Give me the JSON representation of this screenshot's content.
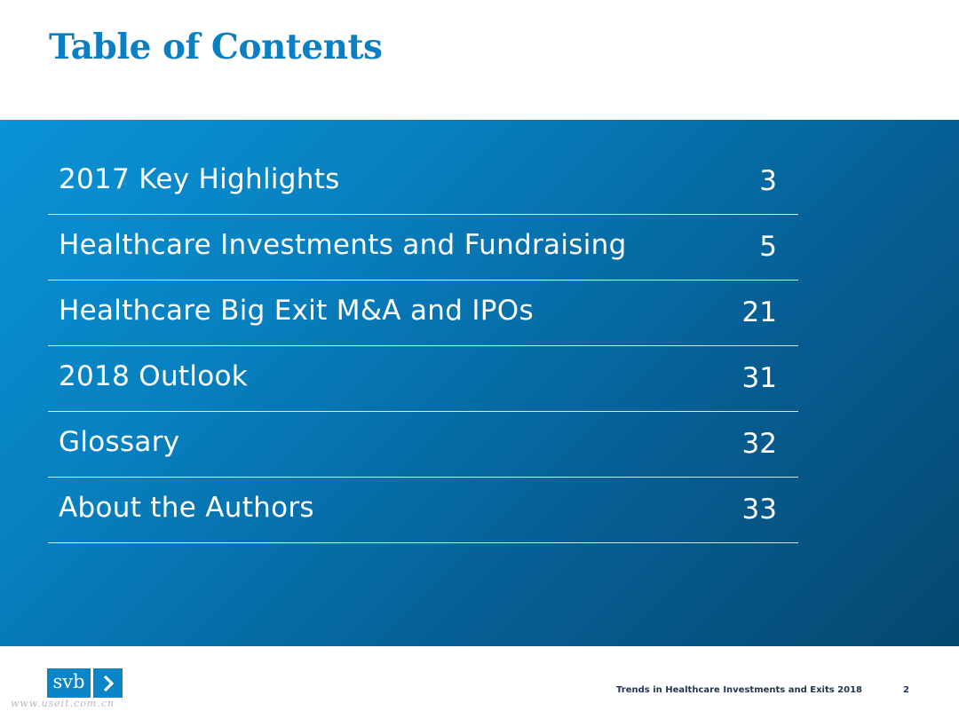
{
  "slide": {
    "title": "Table of Contents"
  },
  "toc": {
    "items": [
      {
        "label": "2017 Key Highlights",
        "page": "3"
      },
      {
        "label": "Healthcare Investments and Fundraising",
        "page": "5"
      },
      {
        "label": "Healthcare Big Exit M&A and IPOs",
        "page": "21"
      },
      {
        "label": "2018 Outlook",
        "page": "31"
      },
      {
        "label": "Glossary",
        "page": "32"
      },
      {
        "label": "About the Authors",
        "page": "33"
      }
    ]
  },
  "footer": {
    "logo_text": "svb",
    "logo_icon": "chevron-right-icon",
    "report_title": "Trends in Healthcare Investments and Exits 2018",
    "page_number": "2",
    "watermark": "www.useit.com.cn"
  },
  "colors": {
    "title": "#0a7fc4",
    "band_start": "#0a93d6",
    "band_end": "#05486f",
    "logo": "#0a86c8",
    "footer_text": "#1e3450"
  }
}
